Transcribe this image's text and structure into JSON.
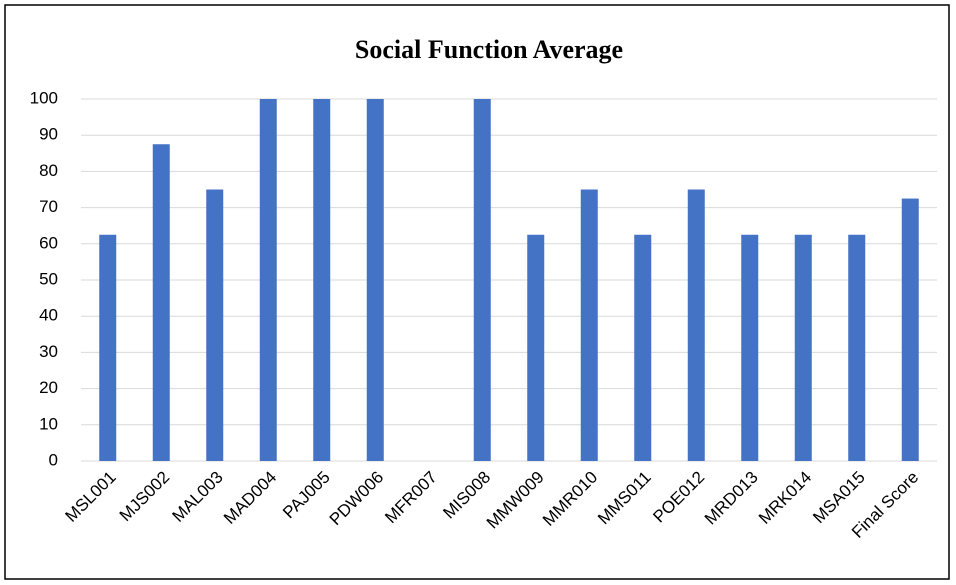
{
  "chart_data": {
    "type": "bar",
    "title": "Social Function Average",
    "categories": [
      "MSL001",
      "MJS002",
      "MAL003",
      "MAD004",
      "PAJ005",
      "PDW006",
      "MFR007",
      "MIS008",
      "MMW009",
      "MMR010",
      "MMS011",
      "POE012",
      "MRD013",
      "MRK014",
      "MSA015",
      "Final Score"
    ],
    "values": [
      62.5,
      87.5,
      75,
      100,
      100,
      100,
      0,
      100,
      62.5,
      75,
      62.5,
      75,
      62.5,
      62.5,
      62.5,
      72.5
    ],
    "color": "#4472c4",
    "ylim": [
      0,
      100
    ],
    "yticks": [
      0,
      10,
      20,
      30,
      40,
      50,
      60,
      70,
      80,
      90,
      100
    ],
    "grid": true
  }
}
